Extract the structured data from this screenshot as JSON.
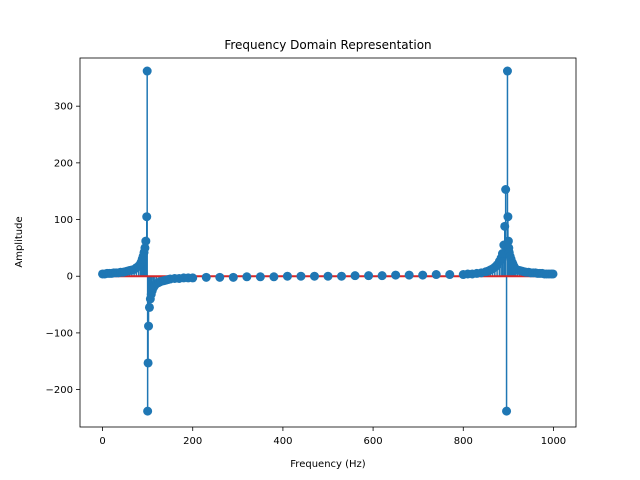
{
  "chart_data": {
    "type": "stem",
    "title": "Frequency Domain Representation",
    "xlabel": "Frequency (Hz)",
    "ylabel": "Amplitude",
    "xlim": [
      -50,
      1050
    ],
    "ylim": [
      -266,
      385
    ],
    "xticks": [
      0,
      200,
      400,
      600,
      800,
      1000
    ],
    "yticks": [
      -200,
      -100,
      0,
      100,
      200,
      300
    ],
    "grid": false,
    "colors": {
      "stem": "#1f77b4",
      "baseline": "#d62728"
    },
    "baseline": {
      "y": 0,
      "xrange": [
        0,
        999
      ]
    },
    "series": [
      {
        "x": [
          0,
          5,
          10,
          15,
          20,
          25,
          30,
          35,
          40,
          45,
          50,
          55,
          60,
          65,
          70,
          75,
          80,
          84,
          86,
          88,
          90,
          92,
          94,
          96,
          98,
          99,
          100,
          101,
          102,
          104,
          106,
          108,
          110,
          113,
          116,
          120,
          125,
          130,
          135,
          140,
          145,
          150,
          160,
          170,
          180,
          190,
          200,
          230,
          260,
          290,
          320,
          350,
          380,
          410,
          440,
          470,
          500,
          530,
          560,
          590,
          620,
          650,
          680,
          710,
          740,
          770,
          800,
          810,
          820,
          830,
          840,
          850,
          855,
          860,
          865,
          870,
          875,
          880,
          884,
          887,
          890,
          892,
          894,
          896,
          898,
          899,
          900,
          901,
          902,
          904,
          906,
          908,
          910,
          912,
          914,
          916,
          920,
          925,
          930,
          935,
          940,
          945,
          950,
          955,
          960,
          965,
          970,
          975,
          980,
          985,
          990,
          995,
          999
        ],
        "y": [
          4,
          4,
          5,
          5,
          5,
          6,
          6,
          6,
          7,
          7,
          8,
          9,
          10,
          11,
          12,
          15,
          18,
          22,
          25,
          30,
          35,
          42,
          50,
          62,
          105,
          362,
          -238,
          -153,
          -88,
          -55,
          -40,
          -32,
          -26,
          -20,
          -16,
          -13,
          -11,
          -9,
          -8,
          -7,
          -6,
          -5,
          -4,
          -4,
          -3,
          -3,
          -3,
          -2,
          -2,
          -2,
          -1,
          -1,
          -1,
          0,
          0,
          0,
          0,
          0,
          1,
          1,
          1,
          2,
          2,
          2,
          3,
          3,
          3,
          4,
          4,
          5,
          6,
          8,
          9,
          11,
          13,
          16,
          20,
          26,
          32,
          40,
          55,
          88,
          153,
          -238,
          362,
          105,
          62,
          50,
          42,
          35,
          30,
          25,
          22,
          18,
          15,
          12,
          11,
          10,
          9,
          8,
          7,
          7,
          6,
          6,
          6,
          5,
          5,
          5,
          4,
          4,
          4,
          4,
          4
        ]
      }
    ]
  }
}
